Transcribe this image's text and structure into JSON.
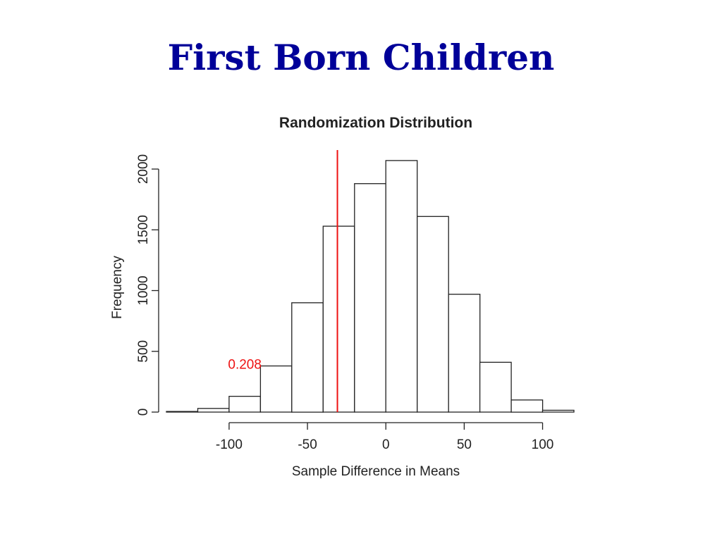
{
  "slide": {
    "title": "First Born Children"
  },
  "chart_data": {
    "type": "bar",
    "title": "Randomization Distribution",
    "xlabel": "Sample Difference in Means",
    "ylabel": "Frequency",
    "bin_edges": [
      -140,
      -120,
      -100,
      -80,
      -60,
      -40,
      -20,
      0,
      20,
      40,
      60,
      80,
      100,
      120
    ],
    "values": [
      5,
      30,
      130,
      380,
      900,
      1530,
      1880,
      2070,
      1610,
      970,
      410,
      100,
      15
    ],
    "xlim": [
      -140,
      120
    ],
    "ylim": [
      0,
      2100
    ],
    "x_ticks": [
      -100,
      -50,
      0,
      50,
      100
    ],
    "x_tick_labels": [
      "-100",
      "-50",
      "0",
      "50",
      "100"
    ],
    "y_ticks": [
      0,
      500,
      1000,
      1500,
      2000
    ],
    "y_tick_labels": [
      "0",
      "500",
      "1000",
      "1500",
      "2000"
    ],
    "grid": false,
    "annotations": [
      {
        "type": "vline",
        "x": -30.9,
        "color": "#ee1111"
      },
      {
        "type": "text",
        "text": "0.208",
        "x": -90,
        "y": 390,
        "color": "#ee1111"
      }
    ],
    "colors": {
      "bar_fill": "#ffffff",
      "bar_stroke": "#222222",
      "accent": "#ee1111"
    }
  }
}
